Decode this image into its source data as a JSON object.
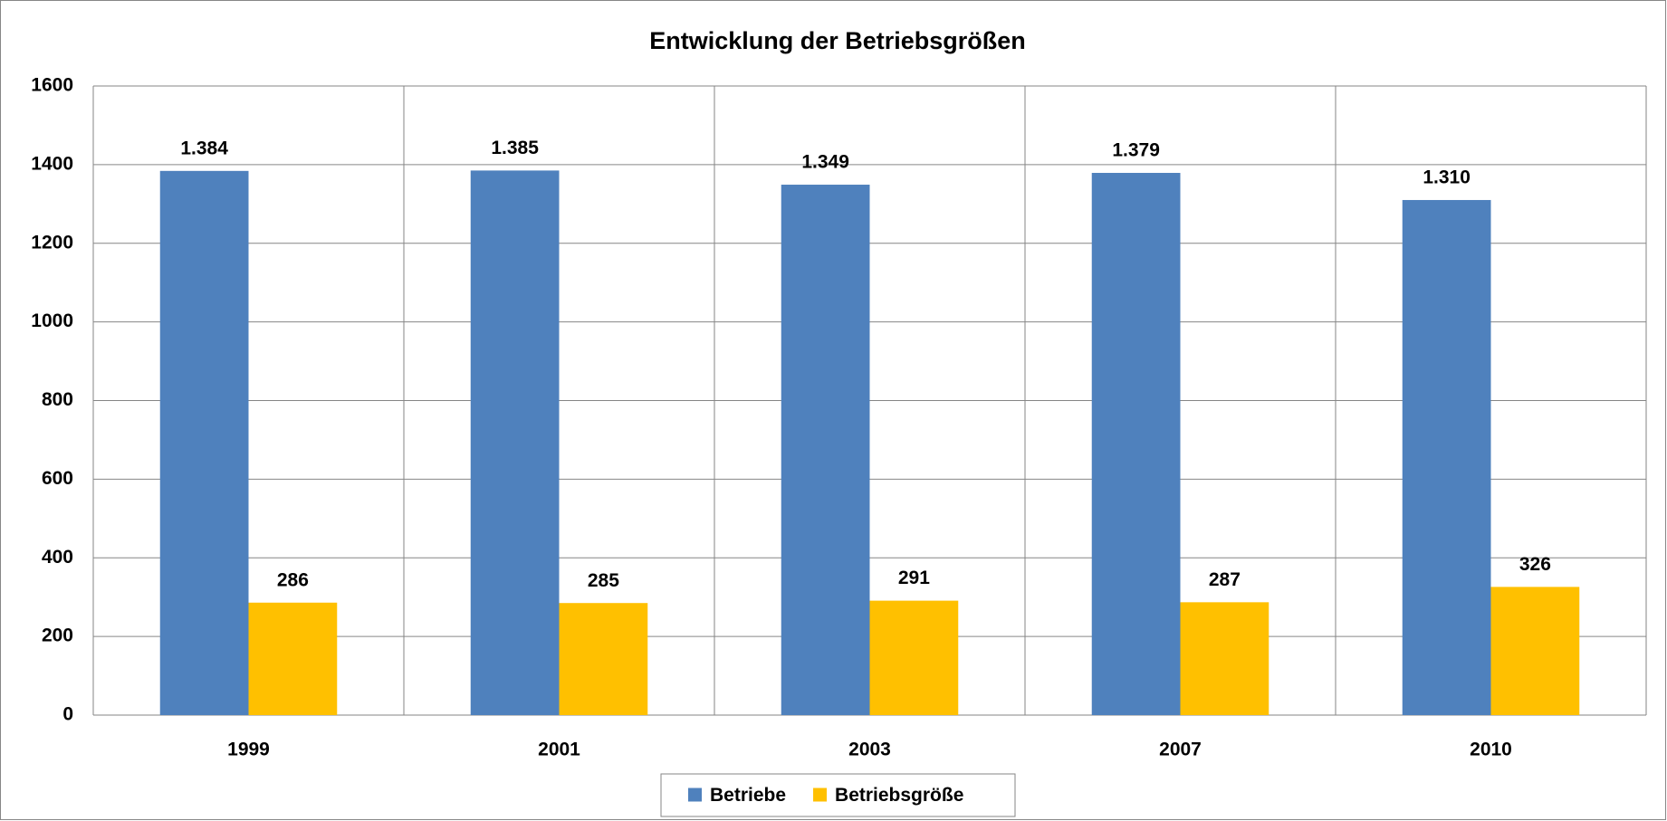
{
  "chart_data": {
    "type": "bar",
    "title": "Entwicklung der Betriebsgrößen",
    "categories": [
      "1999",
      "2001",
      "2003",
      "2007",
      "2010"
    ],
    "series": [
      {
        "name": "Betriebe",
        "color": "#4f81bd",
        "values": [
          1384,
          1385,
          1349,
          1379,
          1310
        ],
        "value_labels": [
          "1.384",
          "1.385",
          "1.349",
          "1.379",
          "1.310"
        ]
      },
      {
        "name": "Betriebsgröße",
        "color": "#ffc000",
        "values": [
          286,
          285,
          291,
          287,
          326
        ]
      }
    ],
    "ylim": [
      0,
      1600
    ],
    "yticks": [
      0,
      200,
      400,
      600,
      800,
      1000,
      1200,
      1400,
      1600
    ],
    "grid": true,
    "legend": "bottom"
  }
}
